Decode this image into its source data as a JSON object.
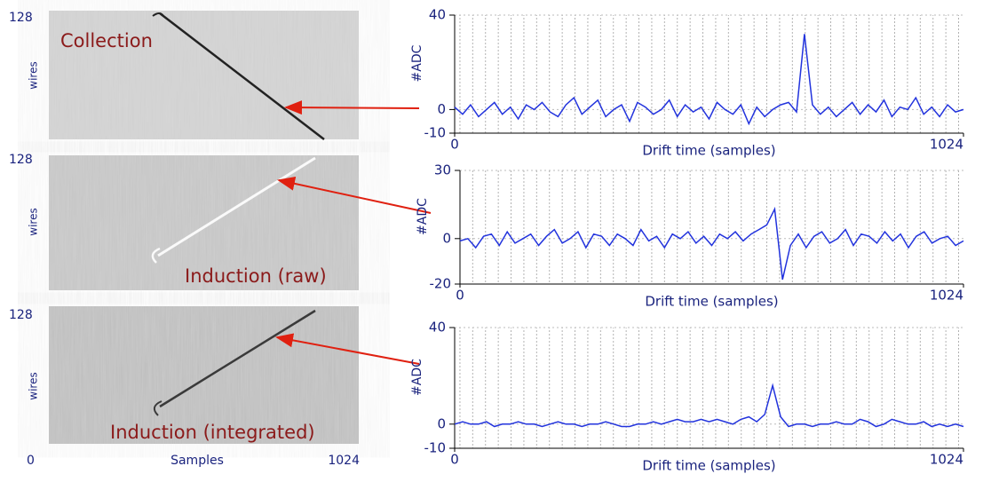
{
  "images": [
    {
      "y_top_label": "128",
      "y_label": "wires",
      "label": "Collection"
    },
    {
      "y_top_label": "128",
      "y_label": "wires",
      "label": "Induction (raw)"
    },
    {
      "y_top_label": "128",
      "y_label": "wires",
      "label": "Induction (integrated)"
    }
  ],
  "image_x_axis": {
    "start": "0",
    "label": "Samples",
    "end": "1024"
  },
  "chart_data": [
    {
      "type": "line",
      "x_label": "Drift time (samples)",
      "y_label": "#ADC",
      "xlim": [
        0,
        1024
      ],
      "xticks": [
        0,
        1024
      ],
      "ylim": [
        -10,
        40
      ],
      "yticks": [
        -10,
        0,
        40
      ],
      "grid": true,
      "x": [
        0,
        16,
        32,
        48,
        64,
        80,
        96,
        112,
        128,
        144,
        160,
        176,
        192,
        208,
        224,
        240,
        256,
        272,
        288,
        304,
        320,
        336,
        352,
        368,
        384,
        400,
        416,
        432,
        448,
        464,
        480,
        496,
        512,
        528,
        544,
        560,
        576,
        592,
        608,
        624,
        640,
        656,
        672,
        688,
        704,
        720,
        736,
        752,
        768,
        784,
        800,
        816,
        832,
        848,
        864,
        880,
        896,
        912,
        928,
        944,
        960,
        976,
        992,
        1008,
        1024
      ],
      "series": [
        {
          "color": "#2233dd",
          "values": [
            1,
            -2,
            2,
            -3,
            0,
            3,
            -2,
            1,
            -4,
            2,
            0,
            3,
            -1,
            -3,
            2,
            5,
            -2,
            1,
            4,
            -3,
            0,
            2,
            -5,
            3,
            1,
            -2,
            0,
            4,
            -3,
            2,
            -1,
            1,
            -4,
            3,
            0,
            -2,
            2,
            -6,
            1,
            -3,
            0,
            2,
            3,
            -1,
            32,
            2,
            -2,
            1,
            -3,
            0,
            3,
            -2,
            2,
            -1,
            4,
            -3,
            1,
            0,
            5,
            -2,
            1,
            -3,
            2,
            -1,
            0
          ]
        }
      ]
    },
    {
      "type": "line",
      "x_label": "Drift time (samples)",
      "y_label": "#ADC",
      "xlim": [
        0,
        1024
      ],
      "xticks": [
        0,
        1024
      ],
      "ylim": [
        -20,
        30
      ],
      "yticks": [
        -20,
        0,
        30
      ],
      "grid": true,
      "x": [
        0,
        16,
        32,
        48,
        64,
        80,
        96,
        112,
        128,
        144,
        160,
        176,
        192,
        208,
        224,
        240,
        256,
        272,
        288,
        304,
        320,
        336,
        352,
        368,
        384,
        400,
        416,
        432,
        448,
        464,
        480,
        496,
        512,
        528,
        544,
        560,
        576,
        592,
        608,
        624,
        640,
        656,
        672,
        688,
        704,
        720,
        736,
        752,
        768,
        784,
        800,
        816,
        832,
        848,
        864,
        880,
        896,
        912,
        928,
        944,
        960,
        976,
        992,
        1008,
        1024
      ],
      "series": [
        {
          "color": "#2233dd",
          "values": [
            -1,
            0,
            -4,
            1,
            2,
            -3,
            3,
            -2,
            0,
            2,
            -3,
            1,
            4,
            -2,
            0,
            3,
            -4,
            2,
            1,
            -3,
            2,
            0,
            -3,
            4,
            -1,
            1,
            -4,
            2,
            0,
            3,
            -2,
            1,
            -3,
            2,
            0,
            3,
            -1,
            2,
            4,
            6,
            13,
            -18,
            -3,
            2,
            -4,
            1,
            3,
            -2,
            0,
            4,
            -3,
            2,
            1,
            -2,
            3,
            -1,
            2,
            -4,
            1,
            3,
            -2,
            0,
            1,
            -3,
            -1
          ]
        }
      ]
    },
    {
      "type": "line",
      "x_label": "Drift time (samples)",
      "y_label": "#ADC",
      "xlim": [
        0,
        1024
      ],
      "xticks": [
        0,
        1024
      ],
      "ylim": [
        -10,
        40
      ],
      "yticks": [
        -10,
        0,
        40
      ],
      "grid": true,
      "x": [
        0,
        16,
        32,
        48,
        64,
        80,
        96,
        112,
        128,
        144,
        160,
        176,
        192,
        208,
        224,
        240,
        256,
        272,
        288,
        304,
        320,
        336,
        352,
        368,
        384,
        400,
        416,
        432,
        448,
        464,
        480,
        496,
        512,
        528,
        544,
        560,
        576,
        592,
        608,
        624,
        640,
        656,
        672,
        688,
        704,
        720,
        736,
        752,
        768,
        784,
        800,
        816,
        832,
        848,
        864,
        880,
        896,
        912,
        928,
        944,
        960,
        976,
        992,
        1008,
        1024
      ],
      "series": [
        {
          "color": "#2233dd",
          "values": [
            0,
            1,
            0,
            0,
            1,
            -1,
            0,
            0,
            1,
            0,
            0,
            -1,
            0,
            1,
            0,
            0,
            -1,
            0,
            0,
            1,
            0,
            -1,
            -1,
            0,
            0,
            1,
            0,
            1,
            2,
            1,
            1,
            2,
            1,
            2,
            1,
            0,
            2,
            3,
            1,
            4,
            16,
            3,
            -1,
            0,
            0,
            -1,
            0,
            0,
            1,
            0,
            0,
            2,
            1,
            -1,
            0,
            2,
            1,
            0,
            0,
            1,
            -1,
            0,
            -1,
            0,
            -1
          ]
        }
      ]
    }
  ]
}
